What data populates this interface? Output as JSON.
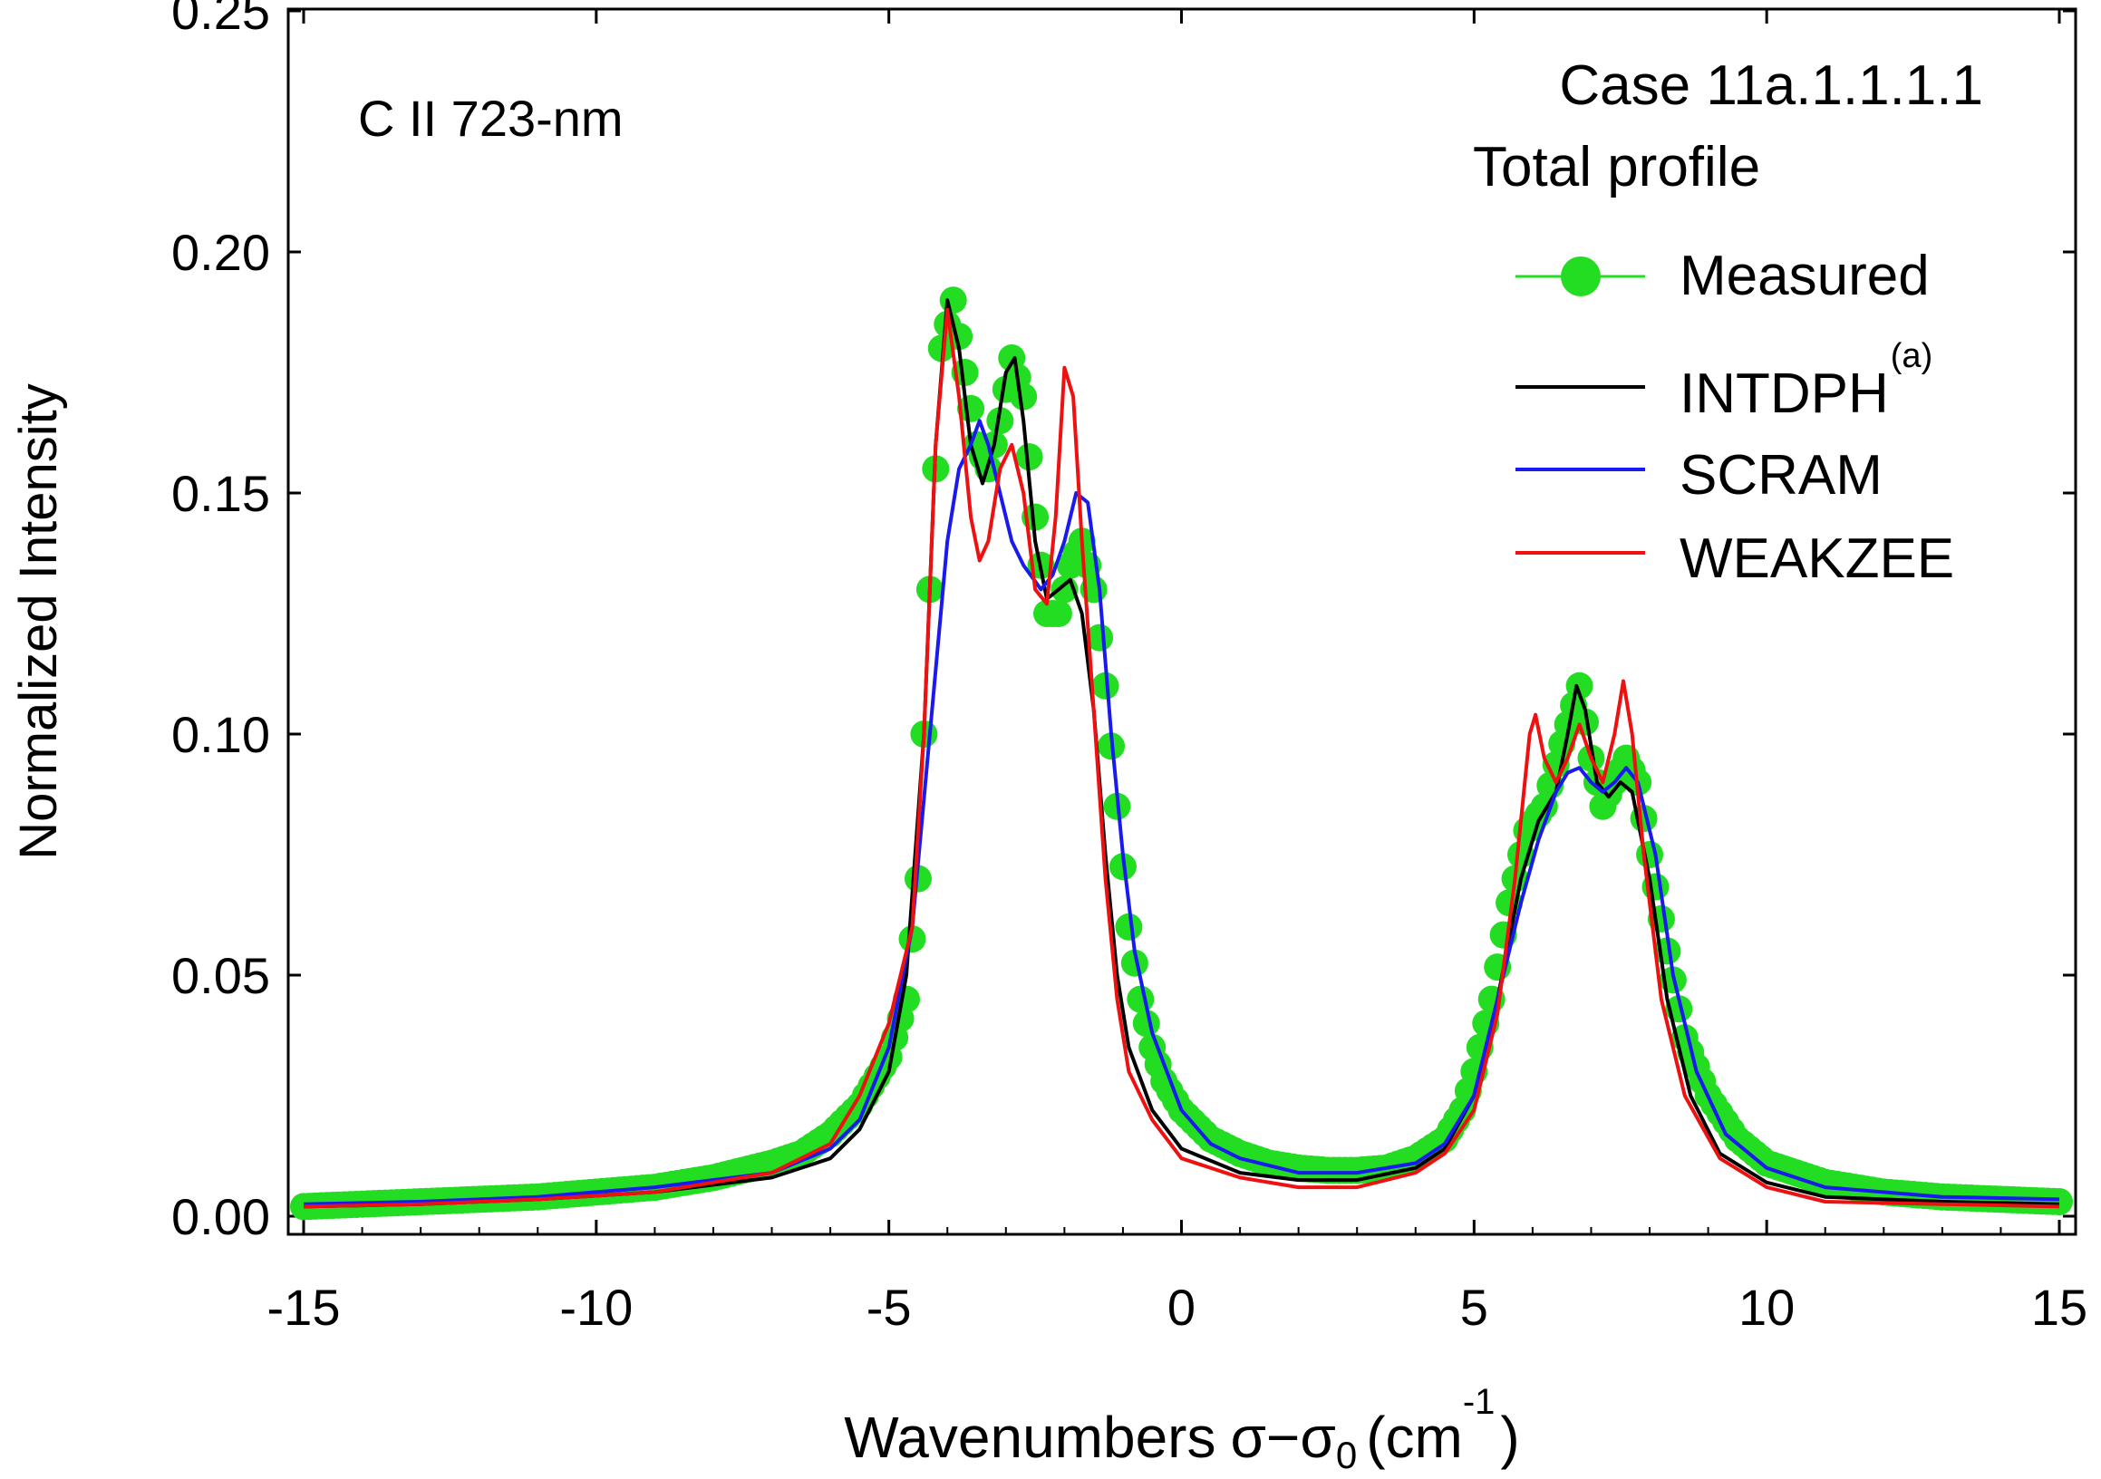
{
  "chart_data": {
    "type": "line",
    "title": "C II 723-nm",
    "annotations": {
      "case": "Case 11a.1.1.1.1",
      "profile": "Total profile"
    },
    "xlabel": {
      "main": "Wavenumbers",
      "sigma": "σ−σ",
      "subscript": "0",
      "open": "(cm",
      "exponent": "-1",
      "close": ")"
    },
    "ylabel": "Normalized Intensity",
    "xlim": [
      -15,
      15
    ],
    "ylim": [
      0,
      0.25
    ],
    "x_ticks": [
      -15,
      -10,
      -5,
      0,
      5,
      10,
      15
    ],
    "x_tick_labels": [
      "-15",
      "-10",
      "-5",
      "0",
      "5",
      "10",
      "15"
    ],
    "y_ticks": [
      0,
      0.05,
      0.1,
      0.15,
      0.2,
      0.25
    ],
    "y_tick_labels": [
      "0.00",
      "0.05",
      "0.10",
      "0.15",
      "0.20",
      "0.25"
    ],
    "grid": false,
    "legend_position": "top-right",
    "series": [
      {
        "name": "Measured",
        "superscript": "",
        "color": "#22dd22",
        "marker": "circle",
        "points": [
          [
            -15,
            0.002
          ],
          [
            -14,
            0.0025
          ],
          [
            -13,
            0.003
          ],
          [
            -12,
            0.0035
          ],
          [
            -11,
            0.004
          ],
          [
            -10,
            0.005
          ],
          [
            -9,
            0.006
          ],
          [
            -8,
            0.008
          ],
          [
            -7,
            0.011
          ],
          [
            -6.5,
            0.013
          ],
          [
            -6,
            0.017
          ],
          [
            -5.5,
            0.023
          ],
          [
            -5,
            0.033
          ],
          [
            -4.7,
            0.045
          ],
          [
            -4.5,
            0.07
          ],
          [
            -4.3,
            0.13
          ],
          [
            -4.1,
            0.18
          ],
          [
            -3.9,
            0.19
          ],
          [
            -3.7,
            0.175
          ],
          [
            -3.5,
            0.16
          ],
          [
            -3.3,
            0.155
          ],
          [
            -3.1,
            0.165
          ],
          [
            -2.9,
            0.178
          ],
          [
            -2.7,
            0.17
          ],
          [
            -2.5,
            0.145
          ],
          [
            -2.3,
            0.125
          ],
          [
            -2.1,
            0.125
          ],
          [
            -1.9,
            0.135
          ],
          [
            -1.7,
            0.14
          ],
          [
            -1.5,
            0.13
          ],
          [
            -1.3,
            0.11
          ],
          [
            -1.1,
            0.085
          ],
          [
            -0.9,
            0.06
          ],
          [
            -0.7,
            0.045
          ],
          [
            -0.5,
            0.035
          ],
          [
            -0.3,
            0.028
          ],
          [
            0,
            0.022
          ],
          [
            0.5,
            0.016
          ],
          [
            1,
            0.013
          ],
          [
            1.5,
            0.011
          ],
          [
            2,
            0.01
          ],
          [
            2.5,
            0.0095
          ],
          [
            3,
            0.0095
          ],
          [
            3.5,
            0.01
          ],
          [
            4,
            0.012
          ],
          [
            4.5,
            0.016
          ],
          [
            4.8,
            0.022
          ],
          [
            5,
            0.03
          ],
          [
            5.3,
            0.045
          ],
          [
            5.6,
            0.065
          ],
          [
            5.9,
            0.08
          ],
          [
            6.2,
            0.085
          ],
          [
            6.5,
            0.098
          ],
          [
            6.8,
            0.11
          ],
          [
            7.0,
            0.095
          ],
          [
            7.2,
            0.085
          ],
          [
            7.4,
            0.09
          ],
          [
            7.6,
            0.095
          ],
          [
            7.8,
            0.09
          ],
          [
            8.0,
            0.075
          ],
          [
            8.3,
            0.055
          ],
          [
            8.6,
            0.037
          ],
          [
            9,
            0.025
          ],
          [
            9.5,
            0.016
          ],
          [
            10,
            0.011
          ],
          [
            11,
            0.007
          ],
          [
            12,
            0.005
          ],
          [
            13,
            0.004
          ],
          [
            14,
            0.0035
          ],
          [
            15,
            0.003
          ]
        ]
      },
      {
        "name": "INTDPH",
        "superscript": "(a)",
        "color": "#000000",
        "marker": "none",
        "points": [
          [
            -15,
            0.002
          ],
          [
            -13,
            0.0025
          ],
          [
            -11,
            0.0035
          ],
          [
            -9,
            0.005
          ],
          [
            -7,
            0.008
          ],
          [
            -6,
            0.012
          ],
          [
            -5.5,
            0.018
          ],
          [
            -5,
            0.03
          ],
          [
            -4.7,
            0.05
          ],
          [
            -4.4,
            0.1
          ],
          [
            -4.2,
            0.16
          ],
          [
            -4.0,
            0.19
          ],
          [
            -3.8,
            0.18
          ],
          [
            -3.6,
            0.16
          ],
          [
            -3.4,
            0.152
          ],
          [
            -3.2,
            0.16
          ],
          [
            -3.0,
            0.175
          ],
          [
            -2.85,
            0.178
          ],
          [
            -2.7,
            0.165
          ],
          [
            -2.5,
            0.14
          ],
          [
            -2.3,
            0.128
          ],
          [
            -2.1,
            0.13
          ],
          [
            -1.9,
            0.132
          ],
          [
            -1.7,
            0.125
          ],
          [
            -1.5,
            0.105
          ],
          [
            -1.3,
            0.075
          ],
          [
            -1.1,
            0.05
          ],
          [
            -0.9,
            0.035
          ],
          [
            -0.5,
            0.022
          ],
          [
            0,
            0.014
          ],
          [
            1,
            0.009
          ],
          [
            2,
            0.0075
          ],
          [
            3,
            0.0075
          ],
          [
            4,
            0.01
          ],
          [
            4.5,
            0.014
          ],
          [
            5,
            0.025
          ],
          [
            5.4,
            0.045
          ],
          [
            5.8,
            0.07
          ],
          [
            6.1,
            0.082
          ],
          [
            6.4,
            0.088
          ],
          [
            6.6,
            0.1
          ],
          [
            6.75,
            0.11
          ],
          [
            6.9,
            0.105
          ],
          [
            7.1,
            0.09
          ],
          [
            7.3,
            0.087
          ],
          [
            7.5,
            0.09
          ],
          [
            7.7,
            0.088
          ],
          [
            8.0,
            0.07
          ],
          [
            8.3,
            0.045
          ],
          [
            8.7,
            0.025
          ],
          [
            9.2,
            0.013
          ],
          [
            10,
            0.007
          ],
          [
            11,
            0.004
          ],
          [
            13,
            0.003
          ],
          [
            15,
            0.0025
          ]
        ]
      },
      {
        "name": "SCRAM",
        "superscript": "",
        "color": "#1a1aee",
        "marker": "none",
        "points": [
          [
            -15,
            0.0025
          ],
          [
            -13,
            0.003
          ],
          [
            -11,
            0.004
          ],
          [
            -9,
            0.006
          ],
          [
            -7,
            0.009
          ],
          [
            -6,
            0.014
          ],
          [
            -5.5,
            0.02
          ],
          [
            -5,
            0.035
          ],
          [
            -4.6,
            0.06
          ],
          [
            -4.3,
            0.1
          ],
          [
            -4.0,
            0.14
          ],
          [
            -3.8,
            0.155
          ],
          [
            -3.6,
            0.16
          ],
          [
            -3.45,
            0.165
          ],
          [
            -3.3,
            0.16
          ],
          [
            -3.1,
            0.15
          ],
          [
            -2.9,
            0.14
          ],
          [
            -2.7,
            0.135
          ],
          [
            -2.4,
            0.13
          ],
          [
            -2.2,
            0.133
          ],
          [
            -2.0,
            0.14
          ],
          [
            -1.8,
            0.15
          ],
          [
            -1.6,
            0.148
          ],
          [
            -1.4,
            0.13
          ],
          [
            -1.2,
            0.1
          ],
          [
            -1.0,
            0.075
          ],
          [
            -0.8,
            0.055
          ],
          [
            -0.5,
            0.038
          ],
          [
            0,
            0.022
          ],
          [
            0.5,
            0.015
          ],
          [
            1,
            0.012
          ],
          [
            2,
            0.009
          ],
          [
            3,
            0.009
          ],
          [
            4,
            0.011
          ],
          [
            4.5,
            0.015
          ],
          [
            5,
            0.025
          ],
          [
            5.4,
            0.045
          ],
          [
            5.8,
            0.065
          ],
          [
            6.1,
            0.078
          ],
          [
            6.4,
            0.088
          ],
          [
            6.6,
            0.092
          ],
          [
            6.8,
            0.093
          ],
          [
            7.0,
            0.09
          ],
          [
            7.2,
            0.088
          ],
          [
            7.4,
            0.09
          ],
          [
            7.6,
            0.093
          ],
          [
            7.8,
            0.09
          ],
          [
            8.1,
            0.075
          ],
          [
            8.4,
            0.05
          ],
          [
            8.8,
            0.03
          ],
          [
            9.3,
            0.017
          ],
          [
            10,
            0.01
          ],
          [
            11,
            0.006
          ],
          [
            13,
            0.004
          ],
          [
            15,
            0.0035
          ]
        ]
      },
      {
        "name": "WEAKZEE",
        "superscript": "",
        "color": "#ee1111",
        "marker": "none",
        "points": [
          [
            -15,
            0.002
          ],
          [
            -13,
            0.0025
          ],
          [
            -11,
            0.0035
          ],
          [
            -9,
            0.005
          ],
          [
            -7,
            0.009
          ],
          [
            -6,
            0.015
          ],
          [
            -5.5,
            0.025
          ],
          [
            -5,
            0.04
          ],
          [
            -4.6,
            0.06
          ],
          [
            -4.4,
            0.1
          ],
          [
            -4.2,
            0.16
          ],
          [
            -4.0,
            0.188
          ],
          [
            -3.8,
            0.17
          ],
          [
            -3.6,
            0.145
          ],
          [
            -3.45,
            0.136
          ],
          [
            -3.3,
            0.14
          ],
          [
            -3.1,
            0.155
          ],
          [
            -2.9,
            0.16
          ],
          [
            -2.7,
            0.15
          ],
          [
            -2.5,
            0.13
          ],
          [
            -2.3,
            0.127
          ],
          [
            -2.15,
            0.145
          ],
          [
            -2.0,
            0.176
          ],
          [
            -1.85,
            0.17
          ],
          [
            -1.7,
            0.14
          ],
          [
            -1.5,
            0.105
          ],
          [
            -1.3,
            0.07
          ],
          [
            -1.1,
            0.045
          ],
          [
            -0.9,
            0.03
          ],
          [
            -0.5,
            0.02
          ],
          [
            0,
            0.012
          ],
          [
            1,
            0.008
          ],
          [
            2,
            0.006
          ],
          [
            3,
            0.006
          ],
          [
            4,
            0.009
          ],
          [
            4.5,
            0.013
          ],
          [
            5,
            0.022
          ],
          [
            5.4,
            0.042
          ],
          [
            5.7,
            0.07
          ],
          [
            5.95,
            0.1
          ],
          [
            6.05,
            0.104
          ],
          [
            6.2,
            0.095
          ],
          [
            6.4,
            0.09
          ],
          [
            6.6,
            0.095
          ],
          [
            6.8,
            0.102
          ],
          [
            7.0,
            0.095
          ],
          [
            7.2,
            0.09
          ],
          [
            7.4,
            0.1
          ],
          [
            7.55,
            0.111
          ],
          [
            7.7,
            0.1
          ],
          [
            7.9,
            0.075
          ],
          [
            8.2,
            0.045
          ],
          [
            8.6,
            0.025
          ],
          [
            9.2,
            0.012
          ],
          [
            10,
            0.006
          ],
          [
            11,
            0.003
          ],
          [
            13,
            0.0025
          ],
          [
            15,
            0.002
          ]
        ]
      }
    ]
  }
}
